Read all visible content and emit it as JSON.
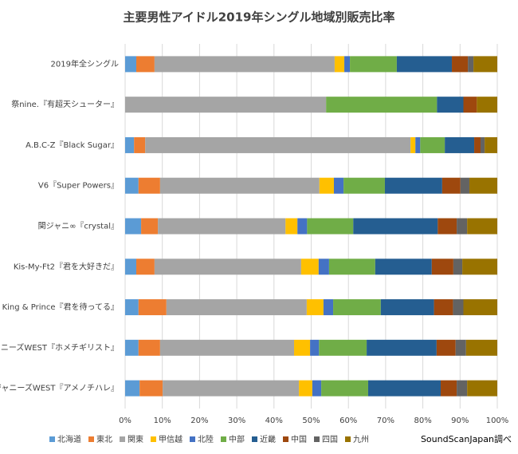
{
  "chart_data": {
    "type": "stacked_barh",
    "title": "主要男性アイドル2019年シングル地域別販売比率",
    "source": "SoundScanJapan調べ",
    "categories": [
      "2019年全シングル",
      "祭nine.『有超天シューター』",
      "A.B.C-Z『Black Sugar』",
      "V6『Super Powers』",
      "関ジャニ∞『crystal』",
      "Kis-My-Ft2『君を大好きだ』",
      "King & Prince『君を待ってる』",
      "ジャニーズWEST『ホメチギリスト』",
      "ジャニーズWEST『アメノチハレ』"
    ],
    "series": [
      {
        "name": "北海道",
        "color": "#5b9bd5",
        "values": [
          3.0,
          0,
          2.4,
          3.6,
          4.3,
          3.0,
          3.6,
          3.6,
          3.9
        ]
      },
      {
        "name": "東北",
        "color": "#ed7d31",
        "values": [
          4.9,
          0,
          3.0,
          5.8,
          4.5,
          4.9,
          7.5,
          5.8,
          6.2
        ]
      },
      {
        "name": "関東",
        "color": "#a5a5a5",
        "values": [
          48.4,
          54.0,
          71.3,
          42.8,
          34.3,
          39.4,
          37.7,
          36.0,
          36.6
        ]
      },
      {
        "name": "甲信越",
        "color": "#ffc000",
        "values": [
          2.6,
          0,
          1.3,
          3.9,
          3.2,
          4.7,
          4.5,
          4.3,
          3.6
        ]
      },
      {
        "name": "北陸",
        "color": "#4472c4",
        "values": [
          1.5,
          0,
          1.3,
          2.6,
          2.6,
          2.8,
          2.6,
          2.4,
          2.4
        ]
      },
      {
        "name": "中部",
        "color": "#70ad47",
        "values": [
          12.6,
          29.8,
          6.6,
          11.1,
          12.4,
          12.4,
          12.8,
          12.8,
          12.6
        ]
      },
      {
        "name": "近畿",
        "color": "#255e91",
        "values": [
          14.8,
          7.1,
          7.9,
          15.4,
          22.7,
          15.2,
          14.3,
          18.8,
          19.5
        ]
      },
      {
        "name": "中国",
        "color": "#9e480e",
        "values": [
          4.3,
          3.6,
          1.7,
          4.9,
          5.1,
          5.8,
          5.1,
          5.1,
          4.3
        ]
      },
      {
        "name": "四国",
        "color": "#636363",
        "values": [
          1.5,
          0,
          1.1,
          2.4,
          2.8,
          2.4,
          2.8,
          2.8,
          2.8
        ]
      },
      {
        "name": "九州",
        "color": "#997300",
        "values": [
          6.4,
          5.5,
          3.4,
          7.5,
          8.1,
          9.4,
          9.1,
          8.4,
          8.1
        ]
      }
    ],
    "xlim": [
      0,
      100
    ],
    "xticks": [
      {
        "value": 0,
        "label": "0%"
      },
      {
        "value": 10,
        "label": "10%"
      },
      {
        "value": 20,
        "label": "20%"
      },
      {
        "value": 30,
        "label": "30%"
      },
      {
        "value": 40,
        "label": "40%"
      },
      {
        "value": 50,
        "label": "50%"
      },
      {
        "value": 60,
        "label": "60%"
      },
      {
        "value": 70,
        "label": "70%"
      },
      {
        "value": 80,
        "label": "80%"
      },
      {
        "value": 90,
        "label": "90%"
      },
      {
        "value": 100,
        "label": "100%"
      }
    ],
    "grid": true,
    "legend": "bottom"
  }
}
